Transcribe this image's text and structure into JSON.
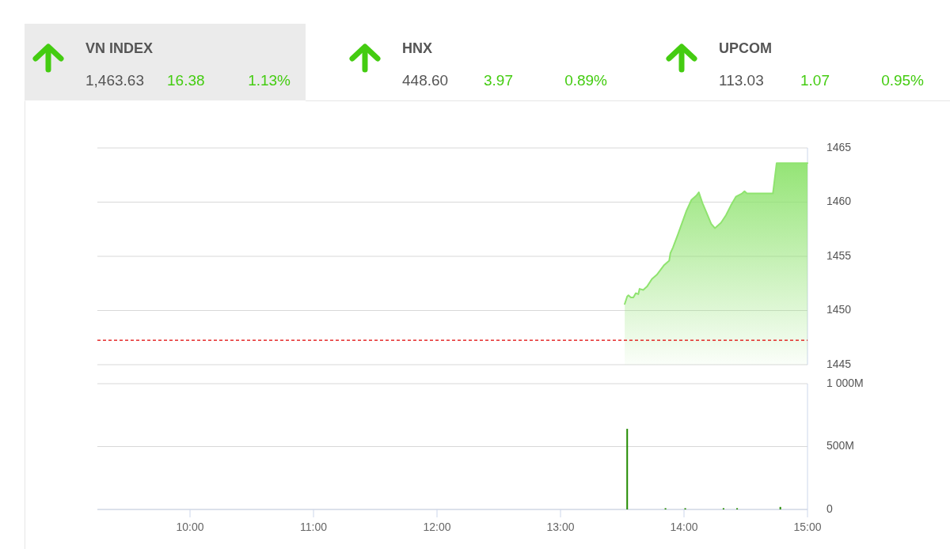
{
  "chart_data": [
    {
      "type": "other",
      "title": "VN INDEX",
      "annotations": [
        "1,463.63",
        "16.38",
        "1.13%"
      ]
    },
    {
      "type": "other",
      "title": "HNX",
      "annotations": [
        "448.60",
        "3.97",
        "0.89%"
      ]
    },
    {
      "type": "other",
      "title": "UPCOM",
      "annotations": [
        "113.03",
        "1.07",
        "0.95%"
      ]
    },
    {
      "type": "area",
      "x": [
        13.52,
        13.54,
        13.55,
        13.57,
        13.59,
        13.61,
        13.63,
        13.64,
        13.67,
        13.7,
        13.74,
        13.78,
        13.84,
        13.88,
        13.89,
        13.91,
        13.95,
        14.02,
        14.06,
        14.1,
        14.12,
        14.15,
        14.18,
        14.22,
        14.25,
        14.3,
        14.34,
        14.38,
        14.42,
        14.47,
        14.49,
        14.51,
        14.72,
        14.75,
        15
      ],
      "values": [
        1450.6,
        1451.3,
        1451.4,
        1451.2,
        1451.2,
        1451.6,
        1451.5,
        1452.0,
        1451.9,
        1452.2,
        1452.9,
        1453.3,
        1454.2,
        1454.6,
        1455.3,
        1455.8,
        1457.0,
        1459.2,
        1460.2,
        1460.6,
        1460.9,
        1459.9,
        1459.1,
        1458.0,
        1457.6,
        1458.1,
        1458.8,
        1459.7,
        1460.5,
        1460.8,
        1461.0,
        1460.8,
        1460.8,
        1463.6,
        1463.6
      ],
      "color": "#8fe36f",
      "xlim": [
        9.25,
        15
      ],
      "ylim": [
        1445,
        1465
      ],
      "yticks": [
        1445,
        1450,
        1455,
        1460,
        1465
      ],
      "grid": "y",
      "tick_labels": "y",
      "ref_lines": [
        {
          "axis": "y",
          "value": 1447.25,
          "color": "#e00000",
          "line_style": "dashed"
        }
      ]
    },
    {
      "type": "bar",
      "x": [
        13.54,
        13.85,
        14.01,
        14.32,
        14.43,
        14.78
      ],
      "values": [
        641,
        10,
        10,
        10,
        10,
        20
      ],
      "color": "#228b00",
      "xlim": [
        9.25,
        15
      ],
      "ylim": [
        0,
        1000
      ],
      "yticks": [
        0,
        {
          "value": 500,
          "label": "500M"
        },
        {
          "value": 1000,
          "label": "1 000M"
        }
      ],
      "xticks": [
        {
          "value": 10,
          "label": "10:00"
        },
        {
          "value": 11,
          "label": "11:00"
        },
        {
          "value": 12,
          "label": "12:00"
        },
        {
          "value": 13,
          "label": "13:00"
        },
        {
          "value": 14,
          "label": "14:00"
        },
        {
          "value": 15,
          "label": "15:00"
        }
      ],
      "grid": "y"
    }
  ]
}
